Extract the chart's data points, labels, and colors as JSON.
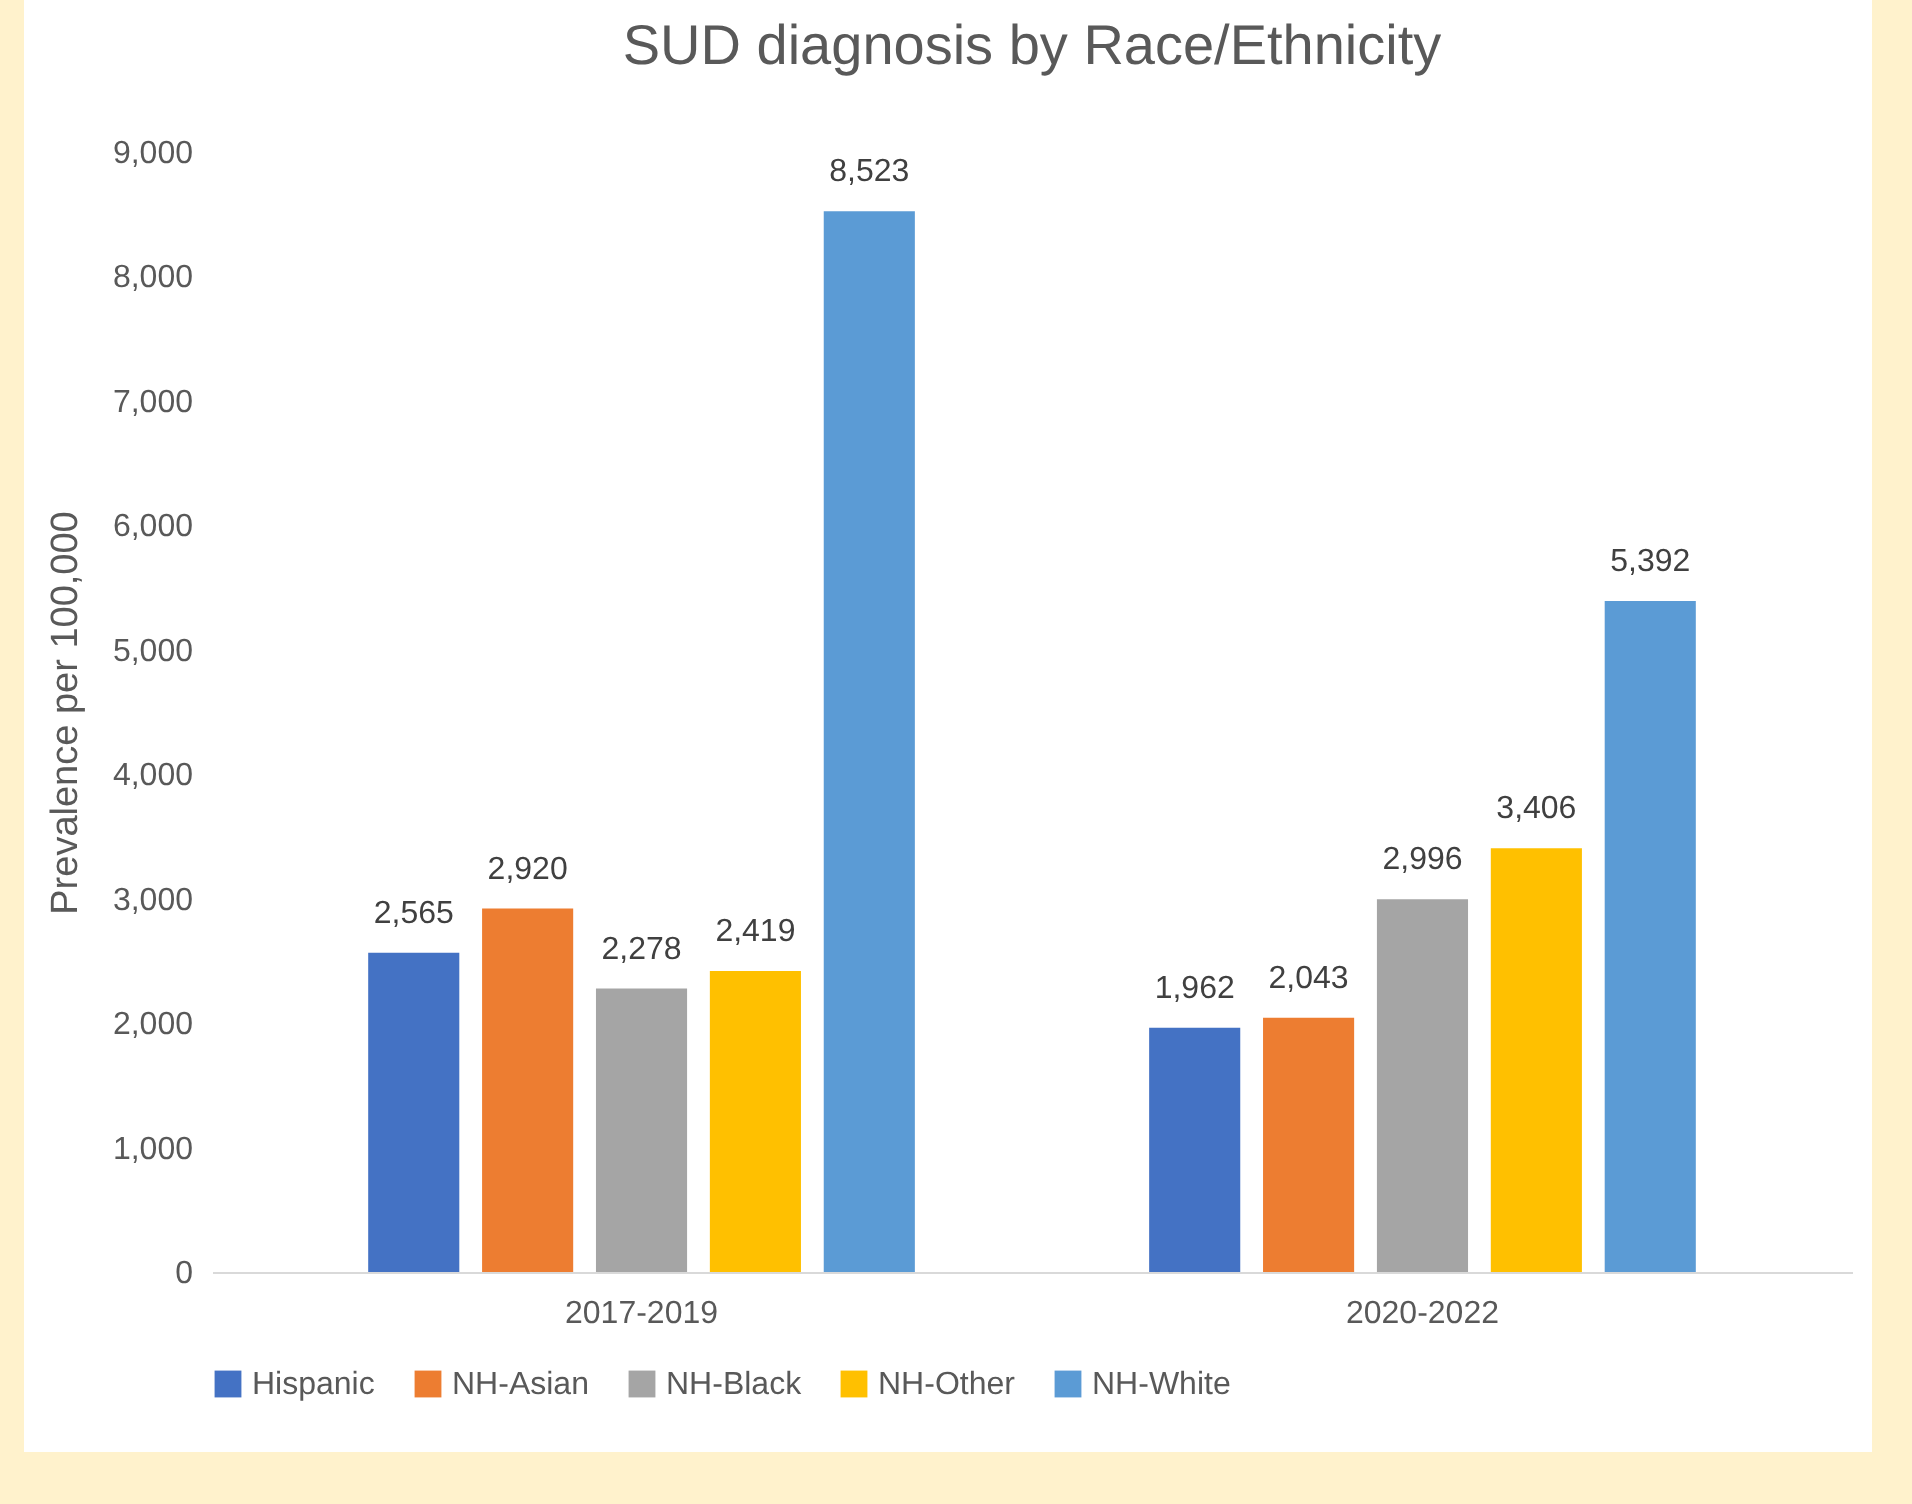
{
  "chart_data": {
    "type": "bar",
    "title": "SUD diagnosis by Race/Ethnicity",
    "ylabel": "Prevalence per 100,000",
    "categories": [
      "2017-2019",
      "2020-2022"
    ],
    "series": [
      {
        "name": "Hispanic",
        "color": "#4472c4",
        "values": [
          2565,
          1962
        ],
        "value_labels": [
          "2,565",
          "1,962"
        ]
      },
      {
        "name": "NH-Asian",
        "color": "#ed7d31",
        "values": [
          2920,
          2043
        ],
        "value_labels": [
          "2,920",
          "2,043"
        ]
      },
      {
        "name": "NH-Black",
        "color": "#a5a5a5",
        "values": [
          2278,
          2996
        ],
        "value_labels": [
          "2,278",
          "2,996"
        ]
      },
      {
        "name": "NH-Other",
        "color": "#ffc000",
        "values": [
          2419,
          3406
        ],
        "value_labels": [
          "2,419",
          "3,406"
        ]
      },
      {
        "name": "NH-White",
        "color": "#5b9bd5",
        "values": [
          8523,
          5392
        ],
        "value_labels": [
          "8,523",
          "5,392"
        ]
      }
    ],
    "ylim": [
      0,
      9000
    ],
    "yticks": [
      0,
      {
        "value": 1000,
        "label": "1,000"
      },
      {
        "value": 2000,
        "label": "2,000"
      },
      {
        "value": 3000,
        "label": "3,000"
      },
      {
        "value": 4000,
        "label": "4,000"
      },
      {
        "value": 5000,
        "label": "5,000"
      },
      {
        "value": 6000,
        "label": "6,000"
      },
      {
        "value": 7000,
        "label": "7,000"
      },
      {
        "value": 8000,
        "label": "8,000"
      },
      {
        "value": 9000,
        "label": "9,000"
      }
    ],
    "grid": false,
    "legend": "bottom"
  }
}
